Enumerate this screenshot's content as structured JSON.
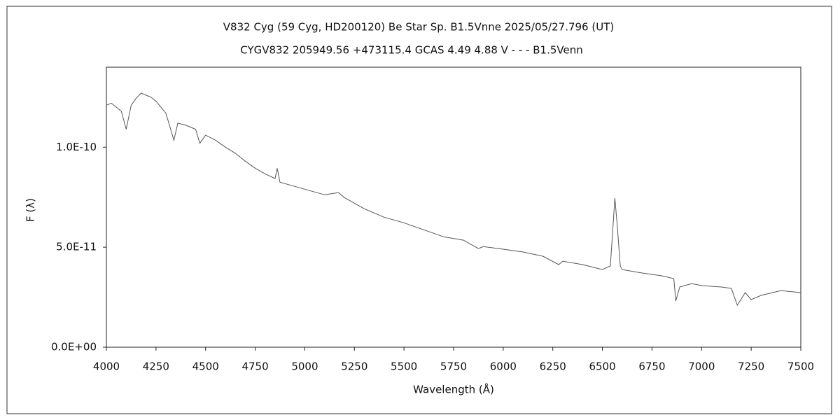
{
  "chart_data": {
    "type": "line",
    "title": "V832 Cyg (59 Cyg, HD200120)   Be Star   Sp. B1.5Vnne   2025/05/27.796 (UT)",
    "subtitle": "CYGV832 205949.56 +473115.4 GCAS 4.49 4.88 V - - - B1.5Venn",
    "xlabel": "Wavelength (Å)",
    "ylabel": "F (λ)",
    "color": "#555555",
    "x": [
      4000,
      4025,
      4050,
      4075,
      4100,
      4125,
      4150,
      4175,
      4200,
      4225,
      4250,
      4275,
      4300,
      4340,
      4360,
      4400,
      4450,
      4471,
      4500,
      4550,
      4600,
      4650,
      4700,
      4750,
      4800,
      4850,
      4861,
      4875,
      4900,
      5000,
      5100,
      5170,
      5200,
      5300,
      5400,
      5500,
      5600,
      5700,
      5800,
      5875,
      5900,
      6000,
      6100,
      6200,
      6280,
      6300,
      6400,
      6500,
      6540,
      6563,
      6575,
      6590,
      6600,
      6700,
      6800,
      6860,
      6870,
      6890,
      6950,
      7000,
      7100,
      7150,
      7180,
      7220,
      7250,
      7300,
      7400,
      7500
    ],
    "values": [
      1.21e-10,
      1.22e-10,
      1.2e-10,
      1.18e-10,
      1.09e-10,
      1.21e-10,
      1.245e-10,
      1.27e-10,
      1.26e-10,
      1.25e-10,
      1.23e-10,
      1.2e-10,
      1.17e-10,
      1.035e-10,
      1.12e-10,
      1.11e-10,
      1.09e-10,
      1.02e-10,
      1.06e-10,
      1.035e-10,
      1e-10,
      9.7e-11,
      9.3e-11,
      8.95e-11,
      8.67e-11,
      8.43e-11,
      8.95e-11,
      8.25e-11,
      8.18e-11,
      7.9e-11,
      7.62e-11,
      7.73e-11,
      7.48e-11,
      6.92e-11,
      6.5e-11,
      6.22e-11,
      5.87e-11,
      5.52e-11,
      5.35e-11,
      4.93e-11,
      5.03e-11,
      4.9e-11,
      4.76e-11,
      4.55e-11,
      4.13e-11,
      4.3e-11,
      4.13e-11,
      3.88e-11,
      4.06e-11,
      7.45e-11,
      6.08e-11,
      4.06e-11,
      3.88e-11,
      3.71e-11,
      3.57e-11,
      3.43e-11,
      2.31e-11,
      3.01e-11,
      3.18e-11,
      3.08e-11,
      3.01e-11,
      2.94e-11,
      2.1e-11,
      2.73e-11,
      2.38e-11,
      2.59e-11,
      2.83e-11,
      2.73e-11
    ],
    "xlim": [
      4000,
      7500
    ],
    "xticks": [
      4000,
      4250,
      4500,
      4750,
      5000,
      5250,
      5500,
      5750,
      6000,
      6250,
      6500,
      6750,
      7000,
      7250,
      7500
    ],
    "ylim": [
      0,
      1.4e-10
    ],
    "yticks": [
      {
        "value": 0,
        "label": "0.0E+00"
      },
      {
        "value": 5e-11,
        "label": "5.0E-11"
      },
      {
        "value": 1e-10,
        "label": "1.0E-10"
      }
    ],
    "grid": false
  }
}
